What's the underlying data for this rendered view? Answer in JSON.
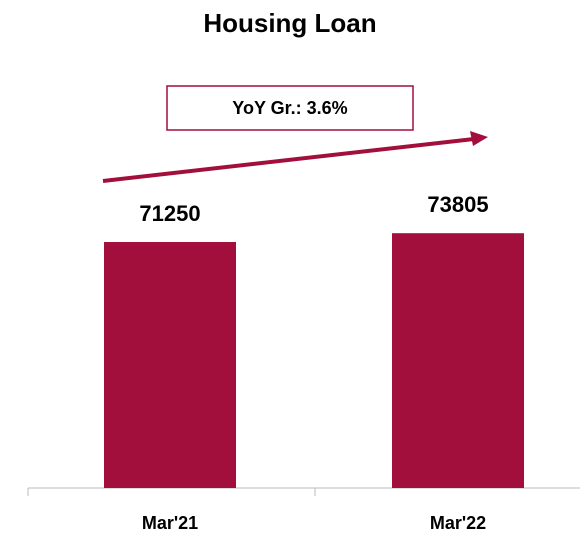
{
  "chart_data": {
    "type": "bar",
    "title": "Housing Loan",
    "annotation": "YoY Gr.: 3.6%",
    "categories": [
      "Mar'21",
      "Mar'22"
    ],
    "values": [
      71250,
      73805
    ],
    "color": "#a20f3c",
    "ylim": [
      0,
      84000
    ]
  }
}
